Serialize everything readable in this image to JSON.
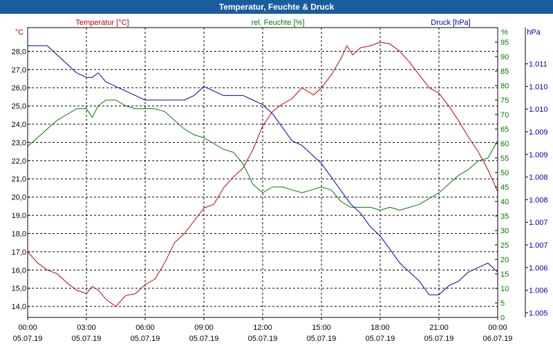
{
  "window": {
    "title": "Temperatur, Feuchte & Druck"
  },
  "colors": {
    "temperature": "#c00000",
    "humidity": "#007a00",
    "pressure": "#0000aa",
    "grid": "#000000",
    "axis_text": "#000000",
    "titlebar": "#1a5c9e"
  },
  "chart_data": {
    "type": "line",
    "title": "Temperatur, Feuchte & Druck",
    "x_ticks": [
      {
        "hours": 0,
        "time": "00:00",
        "date": "05.07.19"
      },
      {
        "hours": 3,
        "time": "03:00",
        "date": "05.07.19"
      },
      {
        "hours": 6,
        "time": "06:00",
        "date": "05.07.19"
      },
      {
        "hours": 9,
        "time": "09:00",
        "date": "05.07.19"
      },
      {
        "hours": 12,
        "time": "12:00",
        "date": "05.07.19"
      },
      {
        "hours": 15,
        "time": "15:00",
        "date": "05.07.19"
      },
      {
        "hours": 18,
        "time": "18:00",
        "date": "05.07.19"
      },
      {
        "hours": 21,
        "time": "21:00",
        "date": "05.07.19"
      },
      {
        "hours": 24,
        "time": "00:00",
        "date": "06.07.19"
      }
    ],
    "x_range": [
      0,
      24
    ],
    "axes": {
      "temperature": {
        "label": "Temperatur [°C]",
        "unit": "°C",
        "range": [
          13.4,
          29.3
        ],
        "ticks": [
          "14,0",
          "15,0",
          "16,0",
          "17,0",
          "18,0",
          "19,0",
          "20,0",
          "21,0",
          "22,0",
          "23,0",
          "24,0",
          "25,0",
          "26,0",
          "27,0",
          "28,0"
        ],
        "tick_values": [
          14,
          15,
          16,
          17,
          18,
          19,
          20,
          21,
          22,
          23,
          24,
          25,
          26,
          27,
          28
        ]
      },
      "humidity": {
        "label": "rel. Feuchte [%]",
        "unit": "%",
        "range": [
          0,
          100
        ],
        "ticks": [
          "0",
          "5",
          "10",
          "15",
          "20",
          "25",
          "30",
          "35",
          "40",
          "45",
          "50",
          "55",
          "60",
          "65",
          "70",
          "75",
          "80",
          "85",
          "90",
          "95"
        ],
        "tick_values": [
          0,
          5,
          10,
          15,
          20,
          25,
          30,
          35,
          40,
          45,
          50,
          55,
          60,
          65,
          70,
          75,
          80,
          85,
          90,
          95
        ]
      },
      "pressure": {
        "label": "Druck [hPa]",
        "unit": "hPa",
        "range": [
          1005.0,
          1011.4
        ],
        "ticks": [
          "1.005",
          "1.006",
          "1.006",
          "1.007",
          "1.007",
          "1.008",
          "1.008",
          "1.009",
          "1.009",
          "1.010",
          "1.010",
          "1.011"
        ],
        "tick_values": [
          1005.1,
          1005.6,
          1006.1,
          1006.6,
          1007.1,
          1007.6,
          1008.1,
          1008.6,
          1009.1,
          1009.6,
          1010.1,
          1010.6
        ]
      }
    },
    "series": [
      {
        "name": "Temperatur [°C]",
        "axis": "temperature",
        "color": "#c00000",
        "x": [
          0,
          0.5,
          1,
          1.5,
          2,
          2.5,
          3,
          3.3,
          3.6,
          4,
          4.5,
          5,
          5.5,
          6,
          6.5,
          7,
          7.5,
          8,
          8.5,
          9,
          9.5,
          10,
          10.5,
          11,
          11.5,
          12,
          12.5,
          13,
          13.5,
          14,
          14.3,
          14.6,
          15,
          15.5,
          16,
          16.3,
          16.6,
          17,
          17.5,
          18,
          18.5,
          19,
          19.5,
          20,
          20.5,
          21,
          21.5,
          22,
          22.5,
          23,
          23.5,
          24
        ],
        "values": [
          17.0,
          16.4,
          16.0,
          15.8,
          15.3,
          14.9,
          14.7,
          15.1,
          14.9,
          14.4,
          14.0,
          14.6,
          14.7,
          15.2,
          15.5,
          16.4,
          17.5,
          18.0,
          18.7,
          19.4,
          19.6,
          20.5,
          21.1,
          21.6,
          22.6,
          23.9,
          24.7,
          25.1,
          25.4,
          26.0,
          25.8,
          25.6,
          26.0,
          26.7,
          27.6,
          28.3,
          27.8,
          28.2,
          28.3,
          28.5,
          28.4,
          28.0,
          27.4,
          26.7,
          26.0,
          25.7,
          25.0,
          24.2,
          23.3,
          22.5,
          21.5,
          20.3
        ]
      },
      {
        "name": "rel. Feuchte [%]",
        "axis": "humidity",
        "color": "#007a00",
        "x": [
          0,
          0.5,
          1,
          1.5,
          2,
          2.5,
          3,
          3.3,
          3.6,
          4,
          4.5,
          5,
          5.5,
          6,
          6.5,
          7,
          7.5,
          8,
          8.5,
          9,
          9.5,
          10,
          10.5,
          11,
          11.5,
          12,
          12.5,
          13,
          13.5,
          14,
          14.5,
          15,
          15.5,
          16,
          16.5,
          17,
          17.5,
          18,
          18.5,
          19,
          19.5,
          20,
          20.5,
          21,
          21.5,
          22,
          22.5,
          23,
          23.5,
          24
        ],
        "values": [
          59,
          62,
          65,
          68,
          70,
          72,
          72,
          69,
          73,
          75,
          75,
          73,
          72,
          72,
          72,
          71,
          68,
          65,
          63,
          62,
          60,
          58,
          57,
          53,
          46,
          43,
          45,
          45,
          44,
          43,
          44,
          45,
          44,
          40,
          38,
          38,
          38,
          37,
          38,
          37,
          38,
          39,
          41,
          43,
          46,
          49,
          51,
          54,
          55,
          61
        ]
      },
      {
        "name": "Druck [hPa]",
        "axis": "pressure",
        "color": "#0000aa",
        "x": [
          0,
          0.5,
          1,
          1.5,
          2,
          2.5,
          3,
          3.3,
          3.6,
          4,
          4.5,
          5,
          5.5,
          6,
          6.5,
          7,
          7.5,
          8,
          8.5,
          9,
          9.5,
          10,
          10.5,
          11,
          11.5,
          12,
          12.5,
          13,
          13.5,
          14,
          14.5,
          15,
          15.5,
          16,
          16.5,
          17,
          17.5,
          18,
          18.5,
          19,
          19.5,
          20,
          20.5,
          21,
          21.5,
          22,
          22.5,
          23,
          23.5,
          24
        ],
        "values": [
          1011.0,
          1011.0,
          1011.0,
          1010.8,
          1010.6,
          1010.4,
          1010.3,
          1010.3,
          1010.4,
          1010.2,
          1010.1,
          1010.0,
          1009.9,
          1009.8,
          1009.8,
          1009.8,
          1009.8,
          1009.8,
          1009.9,
          1010.1,
          1010.0,
          1009.9,
          1009.9,
          1009.9,
          1009.8,
          1009.7,
          1009.5,
          1009.2,
          1008.9,
          1008.8,
          1008.6,
          1008.4,
          1008.1,
          1007.8,
          1007.5,
          1007.3,
          1007.0,
          1006.8,
          1006.5,
          1006.2,
          1006.0,
          1005.8,
          1005.5,
          1005.5,
          1005.7,
          1005.8,
          1006.0,
          1006.1,
          1006.2,
          1006.0
        ]
      }
    ]
  }
}
